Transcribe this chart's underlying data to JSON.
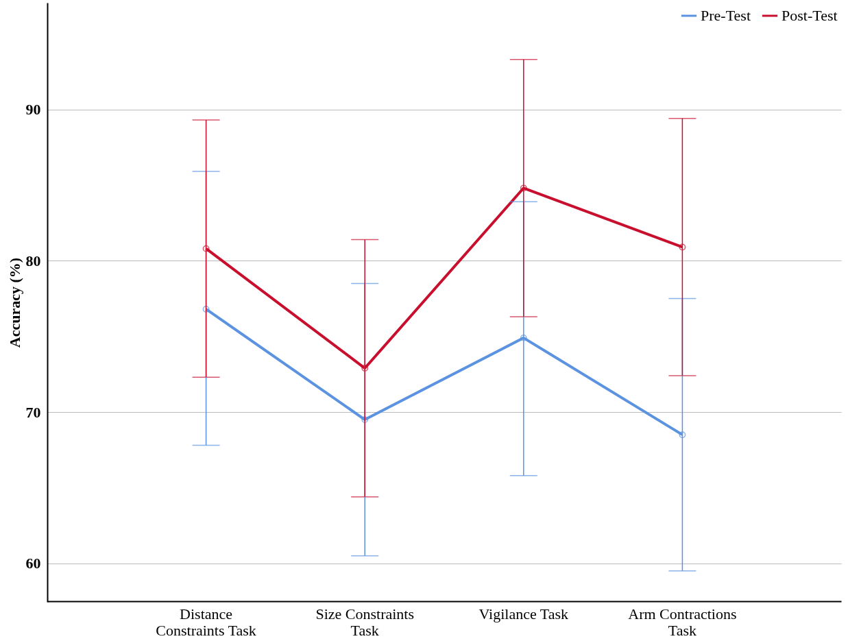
{
  "chart_data": {
    "type": "line",
    "ylabel": "Accuracy (%)",
    "categories": [
      "Distance\nConstraints Task",
      "Size Constraints\nTask",
      "Vigilance Task",
      "Arm Contractions\nTask"
    ],
    "series": [
      {
        "name": "Pre-Test",
        "color": "#5b93e0",
        "values": [
          76.8,
          69.5,
          74.9,
          68.5
        ],
        "errors": [
          [
            67.8,
            85.9
          ],
          [
            60.5,
            78.5
          ],
          [
            65.8,
            83.9
          ],
          [
            59.5,
            77.5
          ]
        ]
      },
      {
        "name": "Post-Test",
        "color": "#c8102e",
        "values": [
          80.8,
          72.9,
          84.8,
          80.9
        ],
        "errors": [
          [
            72.3,
            89.3
          ],
          [
            64.4,
            81.4
          ],
          [
            76.3,
            93.3
          ],
          [
            72.4,
            89.4
          ]
        ]
      }
    ],
    "ylim": [
      57.5,
      97
    ],
    "yticks": [
      60,
      70,
      80,
      90
    ],
    "grid": "y",
    "legend": "top right",
    "marker": "circle",
    "line_style": "solid"
  }
}
